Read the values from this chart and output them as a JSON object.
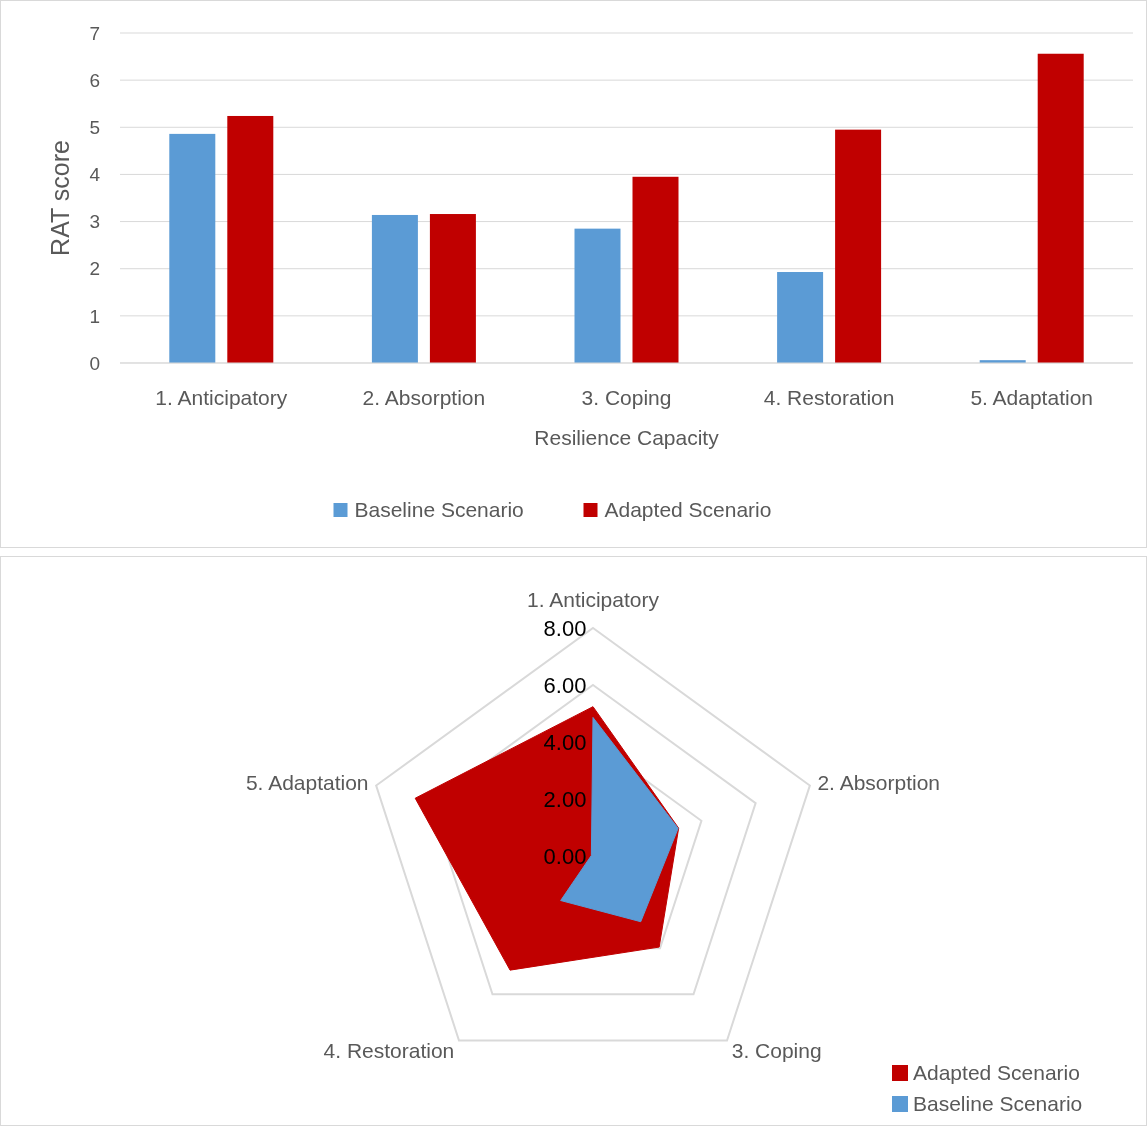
{
  "chart_data": [
    {
      "type": "bar",
      "xlabel": "Resilience Capacity",
      "ylabel": "RAT score",
      "categories": [
        "1. Anticipatory",
        "2. Absorption",
        "3. Coping",
        "4. Restoration",
        "5. Adaptation"
      ],
      "series": [
        {
          "name": "Baseline Scenario",
          "color": "#5b9bd5",
          "values": [
            4.86,
            3.14,
            2.85,
            1.93,
            0.06
          ]
        },
        {
          "name": "Adapted Scenario",
          "color": "#c00000",
          "values": [
            5.24,
            3.16,
            3.95,
            4.95,
            6.56
          ]
        }
      ],
      "ylim": [
        0,
        7
      ],
      "yticks": [
        0,
        1,
        2,
        3,
        4,
        5,
        6,
        7
      ],
      "grid": "y",
      "legend": "bottom"
    },
    {
      "type": "radar",
      "categories": [
        "1. Anticipatory",
        "2. Absorption",
        "3. Coping",
        "4. Restoration",
        "5. Adaptation"
      ],
      "series": [
        {
          "name": "Adapted Scenario",
          "color": "#c00000",
          "values": [
            5.24,
            3.16,
            3.95,
            4.95,
            6.56
          ]
        },
        {
          "name": "Baseline Scenario",
          "color": "#5b9bd5",
          "values": [
            4.86,
            3.14,
            2.85,
            1.93,
            0.06
          ]
        }
      ],
      "ylim": [
        0,
        8
      ],
      "yticks": [
        {
          "value": 0,
          "label": "0.00"
        },
        {
          "value": 2,
          "label": "2.00"
        },
        {
          "value": 4,
          "label": "4.00"
        },
        {
          "value": 6,
          "label": "6.00"
        },
        {
          "value": 8,
          "label": "8.00"
        }
      ],
      "grid": true,
      "legend": "bottom right"
    }
  ]
}
